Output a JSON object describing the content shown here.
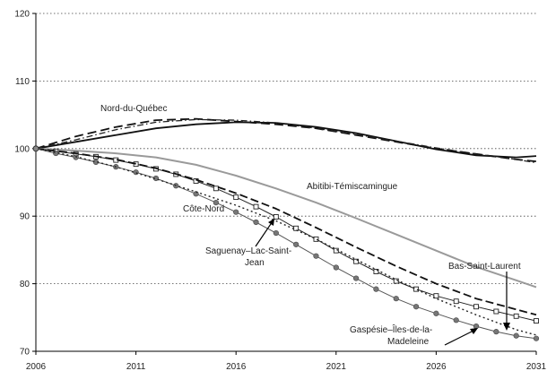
{
  "chart_data": {
    "type": "line",
    "title": "",
    "xlabel": "",
    "ylabel": "",
    "xlim": [
      2006,
      2031
    ],
    "ylim": [
      70,
      120
    ],
    "x_ticks": [
      "2006",
      "2011",
      "2016",
      "2021",
      "2026",
      "2031"
    ],
    "y_ticks": [
      "70",
      "80",
      "90",
      "100",
      "110",
      "120"
    ],
    "grid": "horizontal dotted",
    "series": [
      {
        "name": "Nord-du-Québec",
        "style": "solid-dark",
        "x": [
          2006,
          2008,
          2010,
          2012,
          2014,
          2016,
          2018,
          2020,
          2022,
          2024,
          2026,
          2028,
          2030,
          2031
        ],
        "y": [
          100,
          101.0,
          102.0,
          103.0,
          103.6,
          103.9,
          103.8,
          103.2,
          102.3,
          101.1,
          99.9,
          99.0,
          98.7,
          98.9
        ]
      },
      {
        "x": [
          2006,
          2008,
          2010,
          2012,
          2014,
          2016,
          2018,
          2020,
          2022,
          2024,
          2026,
          2028,
          2030,
          2031
        ],
        "y": [
          100,
          101.8,
          103.2,
          104.2,
          104.4,
          104.0,
          103.6,
          103.0,
          102.0,
          101.0,
          100.0,
          99.2,
          98.4,
          98.1
        ],
        "style": "dashed"
      },
      {
        "x": [
          2006,
          2008,
          2010,
          2012,
          2014,
          2016,
          2018,
          2020,
          2022,
          2024,
          2026,
          2028,
          2030,
          2031
        ],
        "y": [
          100,
          101.3,
          102.8,
          103.9,
          104.3,
          104.2,
          103.8,
          103.0,
          102.1,
          101.1,
          100.1,
          99.2,
          98.4,
          97.9
        ],
        "style": "dash-dot"
      },
      {
        "name": "Abitibi-Témiscamingue",
        "style": "solid-gray",
        "x": [
          2006,
          2008,
          2010,
          2012,
          2014,
          2016,
          2018,
          2020,
          2022,
          2024,
          2026,
          2028,
          2030,
          2031
        ],
        "y": [
          100,
          99.7,
          99.3,
          98.7,
          97.6,
          96.0,
          94.1,
          92.0,
          89.7,
          87.3,
          84.9,
          82.5,
          80.5,
          79.5
        ]
      },
      {
        "name": "Côte-Nord",
        "style": "solid-open-square",
        "x": [
          2006,
          2007,
          2008,
          2009,
          2010,
          2011,
          2012,
          2013,
          2014,
          2015,
          2016,
          2017,
          2018,
          2019,
          2020,
          2021,
          2022,
          2023,
          2024,
          2025,
          2026,
          2027,
          2028,
          2029,
          2030,
          2031
        ],
        "y": [
          100,
          99.6,
          99.2,
          98.8,
          98.3,
          97.7,
          97.0,
          96.2,
          95.2,
          94.1,
          92.8,
          91.4,
          89.9,
          88.2,
          86.6,
          84.9,
          83.3,
          81.8,
          80.4,
          79.2,
          78.2,
          77.4,
          76.6,
          75.9,
          75.2,
          74.5
        ]
      },
      {
        "name": "Saguenay–Lac-Saint-Jean",
        "style": "dashed-dark",
        "x": [
          2006,
          2008,
          2010,
          2012,
          2014,
          2016,
          2018,
          2020,
          2022,
          2024,
          2026,
          2028,
          2030,
          2031
        ],
        "y": [
          100,
          99.3,
          98.4,
          97.1,
          95.4,
          93.4,
          91.1,
          88.3,
          85.4,
          82.6,
          80.0,
          77.8,
          76.2,
          75.4
        ]
      },
      {
        "name": "Gaspésie–Îles-de-la-Madeleine",
        "style": "solid-filled-circle",
        "x": [
          2006,
          2007,
          2008,
          2009,
          2010,
          2011,
          2012,
          2013,
          2014,
          2015,
          2016,
          2017,
          2018,
          2019,
          2020,
          2021,
          2022,
          2023,
          2024,
          2025,
          2026,
          2027,
          2028,
          2029,
          2030,
          2031
        ],
        "y": [
          100,
          99.3,
          98.7,
          98.0,
          97.3,
          96.5,
          95.6,
          94.5,
          93.3,
          92.0,
          90.6,
          89.1,
          87.5,
          85.8,
          84.1,
          82.4,
          80.8,
          79.2,
          77.8,
          76.6,
          75.6,
          74.6,
          73.7,
          72.9,
          72.3,
          71.9
        ]
      },
      {
        "name": "Bas-Saint-Laurent",
        "style": "dotted",
        "x": [
          2006,
          2008,
          2010,
          2012,
          2014,
          2016,
          2018,
          2020,
          2022,
          2024,
          2026,
          2028,
          2030,
          2031
        ],
        "y": [
          100,
          98.8,
          97.3,
          95.5,
          93.6,
          91.6,
          89.3,
          86.6,
          83.6,
          80.6,
          77.8,
          75.4,
          73.2,
          72.4
        ]
      }
    ],
    "annotations": [
      {
        "text": "Nord-du-Québec"
      },
      {
        "text": "Abitibi-Témiscamingue"
      },
      {
        "text": "Côte-Nord"
      },
      {
        "text": "Saguenay–Lac-Saint-"
      },
      {
        "text": "Jean"
      },
      {
        "text": "Bas-Saint-Laurent"
      },
      {
        "text": "Gaspésie–Îles-de-la-"
      },
      {
        "text": "Madeleine"
      }
    ]
  }
}
